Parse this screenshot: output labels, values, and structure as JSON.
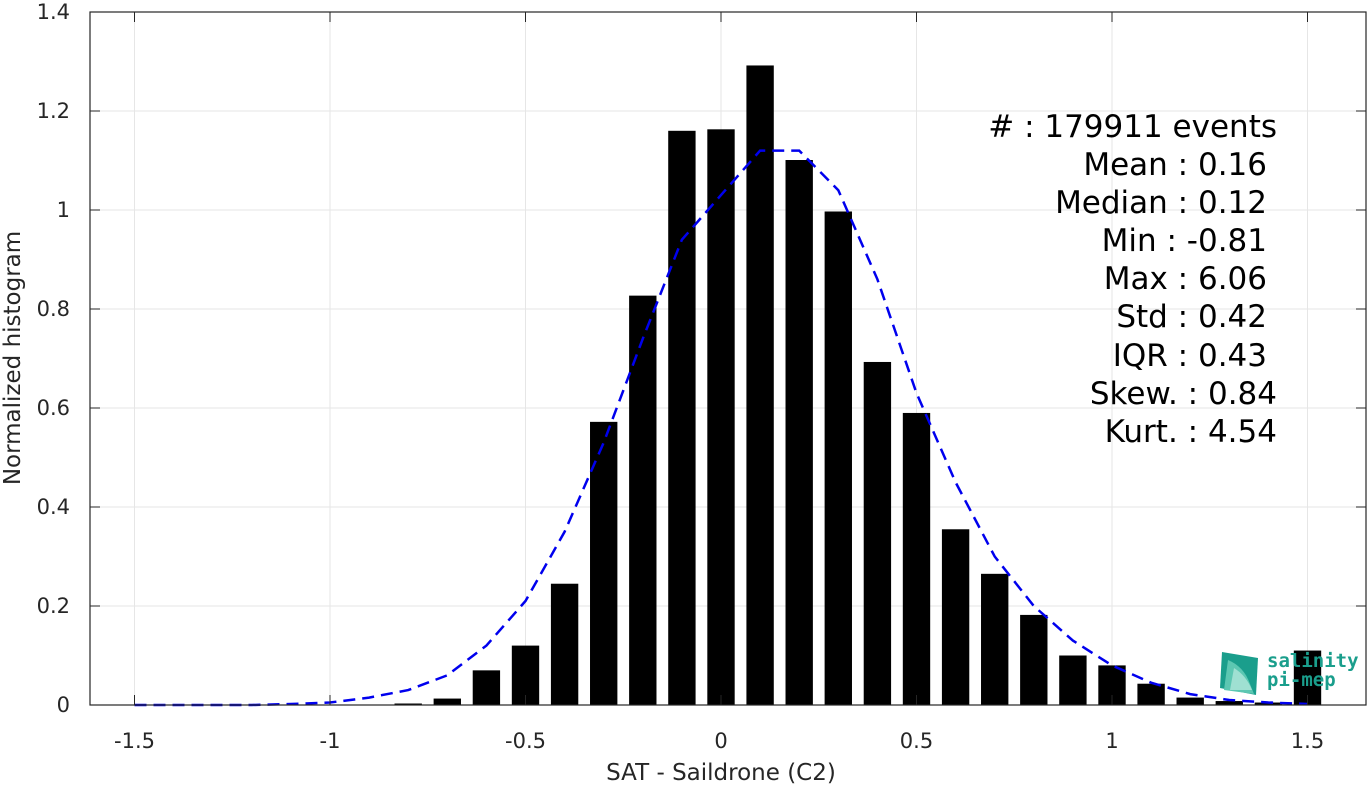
{
  "chart_data": {
    "type": "bar",
    "xlabel": "SAT - Saildrone (C2)",
    "ylabel": "Normalized histogram",
    "xlim": [
      -1.6,
      1.6
    ],
    "ylim": [
      0,
      1.4
    ],
    "xticks": [
      -1.5,
      -1,
      -0.5,
      0,
      0.5,
      1,
      1.5
    ],
    "xtick_labels": [
      "-1.5",
      "-1",
      "-0.5",
      "0",
      "0.5",
      "1",
      "1.5"
    ],
    "yticks": [
      0,
      0.2,
      0.4,
      0.6,
      0.8,
      1,
      1.2,
      1.4
    ],
    "ytick_labels": [
      "0",
      "0.2",
      "0.4",
      "0.6",
      "0.8",
      "1",
      "1.2",
      "1.4"
    ],
    "grid": true,
    "bar_width": 0.07,
    "bars": {
      "x": [
        -1.5,
        -1.4,
        -1.3,
        -1.2,
        -1.1,
        -1.0,
        -0.9,
        -0.8,
        -0.7,
        -0.6,
        -0.5,
        -0.4,
        -0.3,
        -0.2,
        -0.1,
        0.0,
        0.1,
        0.2,
        0.3,
        0.4,
        0.5,
        0.6,
        0.7,
        0.8,
        0.9,
        1.0,
        1.1,
        1.2,
        1.3,
        1.4,
        1.5
      ],
      "values": [
        0,
        0,
        0,
        0,
        0,
        0,
        0,
        0.003,
        0.013,
        0.07,
        0.12,
        0.245,
        0.572,
        0.827,
        1.16,
        1.163,
        1.292,
        1.101,
        0.997,
        0.693,
        0.59,
        0.355,
        0.265,
        0.182,
        0.1,
        0.08,
        0.043,
        0.015,
        0.008,
        0.005,
        0.11
      ],
      "color": "#000000"
    },
    "fit": {
      "style": "dashed",
      "color": "#0000ee",
      "x": [
        -1.5,
        -1.4,
        -1.3,
        -1.2,
        -1.1,
        -1.0,
        -0.9,
        -0.8,
        -0.7,
        -0.6,
        -0.5,
        -0.4,
        -0.3,
        -0.2,
        -0.1,
        0.0,
        0.1,
        0.2,
        0.3,
        0.4,
        0.5,
        0.6,
        0.7,
        0.8,
        0.9,
        1.0,
        1.1,
        1.2,
        1.3,
        1.4,
        1.5
      ],
      "y": [
        0.0,
        0.0,
        0.0,
        0.0,
        0.002,
        0.005,
        0.015,
        0.03,
        0.06,
        0.12,
        0.21,
        0.35,
        0.53,
        0.74,
        0.94,
        1.03,
        1.12,
        1.12,
        1.04,
        0.86,
        0.63,
        0.45,
        0.3,
        0.2,
        0.13,
        0.08,
        0.045,
        0.022,
        0.01,
        0.005,
        0.002
      ]
    },
    "stats": [
      "#   : 179911 events",
      "Mean : 0.16",
      "Median : 0.12",
      "Min : -0.81",
      "Max : 6.06",
      "Std : 0.42",
      "IQR : 0.43",
      "Skew. : 0.84",
      "Kurt. : 4.54"
    ]
  },
  "logo": {
    "line1": "salinity",
    "line2": "pi-mep",
    "color": "#1a9e8c"
  }
}
